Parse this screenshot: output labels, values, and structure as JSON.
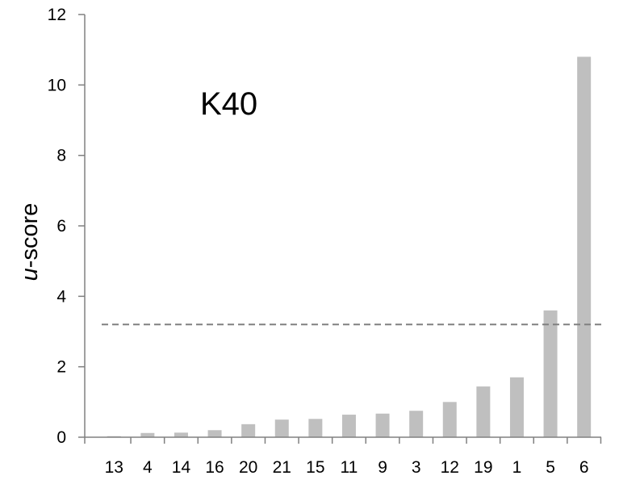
{
  "chart_data": {
    "type": "bar",
    "categories": [
      "13",
      "4",
      "14",
      "16",
      "20",
      "21",
      "15",
      "11",
      "9",
      "3",
      "12",
      "19",
      "1",
      "5",
      "6"
    ],
    "values": [
      0.03,
      0.12,
      0.13,
      0.2,
      0.37,
      0.5,
      0.52,
      0.64,
      0.67,
      0.75,
      1.0,
      1.44,
      1.7,
      3.6,
      10.8
    ],
    "ylabel_italic": "u",
    "ylabel_rest": "-score",
    "ylim": [
      0,
      12
    ],
    "yticks": [
      "0",
      "2",
      "4",
      "6",
      "8",
      "10",
      "12"
    ],
    "annotation": "K40",
    "threshold": 3.2,
    "grid": false,
    "colors": {
      "bar": "#bfbfbf",
      "axis": "#808080",
      "threshold_line": "#808080"
    }
  }
}
